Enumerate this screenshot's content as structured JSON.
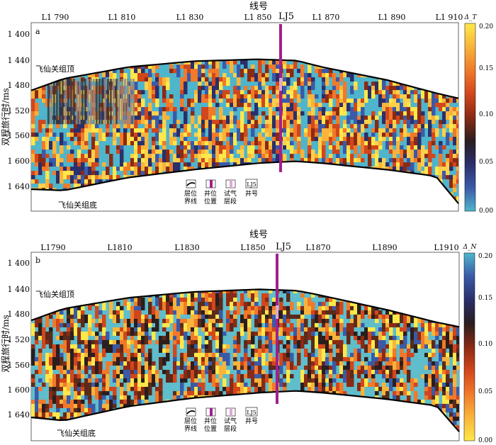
{
  "panels": [
    {
      "id": "a",
      "x_axis_title": "线号",
      "x_ticks": [
        "L1 790",
        "L1 810",
        "L1 830",
        "L1 850",
        "L1 870",
        "L1 890",
        "L1 910"
      ],
      "x_tick_values": [
        1790,
        1810,
        1830,
        1850,
        1870,
        1890,
        1910
      ],
      "y_axis_title": "双程旅行时/ms",
      "y_ticks": [
        "1 400",
        "1 440",
        "1 480",
        "1 520",
        "1 560",
        "1 600",
        "1 640"
      ],
      "y_tick_values": [
        1400,
        1440,
        1480,
        1520,
        1560,
        1600,
        1640
      ],
      "well_label": "LJ5",
      "well_line": 1862,
      "top_horizon_label": "飞仙关组顶",
      "bottom_horizon_label": "飞仙关组底",
      "colorbar_title": "Δ_T",
      "colorbar_ticks": [
        "0.20",
        "0.15",
        "0.10",
        "0.05",
        "0.00"
      ],
      "colorbar_range": [
        0,
        0.2
      ],
      "colormap": [
        "#4fb5cc",
        "#3a5aa8",
        "#2b2f6a",
        "#2a1e1e",
        "#8a2a14",
        "#d2461c",
        "#f07a2a",
        "#f8b43a",
        "#ffe84a"
      ]
    },
    {
      "id": "b",
      "x_axis_title": "线号",
      "x_ticks": [
        "L1790",
        "L1810",
        "L1830",
        "L1850",
        "L1870",
        "L1890",
        "L1910"
      ],
      "x_tick_values": [
        1790,
        1810,
        1830,
        1850,
        1870,
        1890,
        1910
      ],
      "y_axis_title": "双程旅行时/ms",
      "y_ticks": [
        "1 400",
        "1 440",
        "1 480",
        "1 520",
        "1 560",
        "1 600",
        "1 640"
      ],
      "y_tick_values": [
        1400,
        1440,
        1480,
        1520,
        1560,
        1600,
        1640
      ],
      "well_label": "LJ5",
      "well_line": 1862,
      "top_horizon_label": "飞仙关组顶",
      "bottom_horizon_label": "飞仙关组底",
      "colorbar_title": "Δ_N",
      "colorbar_ticks": [
        "0.20",
        "0.15",
        "0.10",
        "0.05",
        "0.00"
      ],
      "colorbar_range": [
        0,
        0.2
      ],
      "colormap": [
        "#ffe84a",
        "#f8b43a",
        "#f07a2a",
        "#d2461c",
        "#8a2a14",
        "#2a1e1e",
        "#2b2f6a",
        "#3a5aa8",
        "#4fb5cc"
      ]
    }
  ],
  "legend": [
    {
      "label_line1": "层位",
      "label_line2": "界线",
      "icon": "horizon-line"
    },
    {
      "label_line1": "井位",
      "label_line2": "位置",
      "icon": "well-position"
    },
    {
      "label_line1": "试气",
      "label_line2": "层段",
      "icon": "gas-test-interval"
    },
    {
      "label_line1": "井号",
      "label_line2": "",
      "icon": "well-name",
      "icon_text": "LJ5"
    }
  ],
  "chart_data": [
    {
      "type": "heatmap",
      "panel": "a",
      "title": "",
      "xlabel": "线号",
      "ylabel": "双程旅行时/ms",
      "xlim": [
        1780,
        1912
      ],
      "ylim": [
        1400,
        1660
      ],
      "zlabel": "Δ_T",
      "zlim": [
        0,
        0.2
      ],
      "top_horizon": {
        "x": [
          1780,
          1790,
          1810,
          1830,
          1850,
          1862,
          1870,
          1890,
          1905,
          1912
        ],
        "t": [
          1488,
          1470,
          1452,
          1443,
          1440,
          1442,
          1452,
          1472,
          1492,
          1500
        ]
      },
      "bottom_horizon": {
        "x": [
          1780,
          1790,
          1810,
          1830,
          1850,
          1862,
          1870,
          1890,
          1905,
          1912
        ],
        "t": [
          1640,
          1642,
          1622,
          1610,
          1600,
          1597,
          1600,
          1610,
          1620,
          1662
        ]
      }
    },
    {
      "type": "heatmap",
      "panel": "b",
      "title": "",
      "xlabel": "线号",
      "ylabel": "双程旅行时/ms",
      "xlim": [
        1780,
        1912
      ],
      "ylim": [
        1400,
        1660
      ],
      "zlabel": "Δ_N",
      "zlim": [
        0,
        0.2
      ],
      "top_horizon": {
        "x": [
          1780,
          1790,
          1810,
          1830,
          1850,
          1862,
          1870,
          1890,
          1905,
          1912
        ],
        "t": [
          1490,
          1472,
          1455,
          1446,
          1442,
          1444,
          1452,
          1474,
          1493,
          1500
        ]
      },
      "bottom_horizon": {
        "x": [
          1780,
          1790,
          1810,
          1830,
          1850,
          1862,
          1870,
          1890,
          1905,
          1912
        ],
        "t": [
          1640,
          1645,
          1623,
          1610,
          1602,
          1599,
          1602,
          1612,
          1622,
          1662
        ]
      }
    }
  ]
}
